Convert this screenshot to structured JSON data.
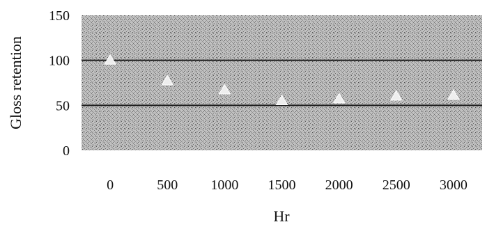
{
  "chart_data": {
    "type": "scatter",
    "title": "",
    "xlabel": "Hr",
    "ylabel": "Gloss retention",
    "categories": [
      "0",
      "500",
      "1000",
      "1500",
      "2000",
      "2500",
      "3000"
    ],
    "series": [
      {
        "values": [
          100,
          77,
          67,
          55,
          57,
          60,
          61
        ]
      }
    ],
    "ylim": [
      0,
      150
    ],
    "yticks": [
      0,
      50,
      100,
      150
    ],
    "grid": true,
    "legend": "none",
    "colors": {
      "plot_background": "#b8b8b8",
      "gridline": "#1a1a1a",
      "marker": "#eeeeee",
      "text": "#111111"
    }
  }
}
